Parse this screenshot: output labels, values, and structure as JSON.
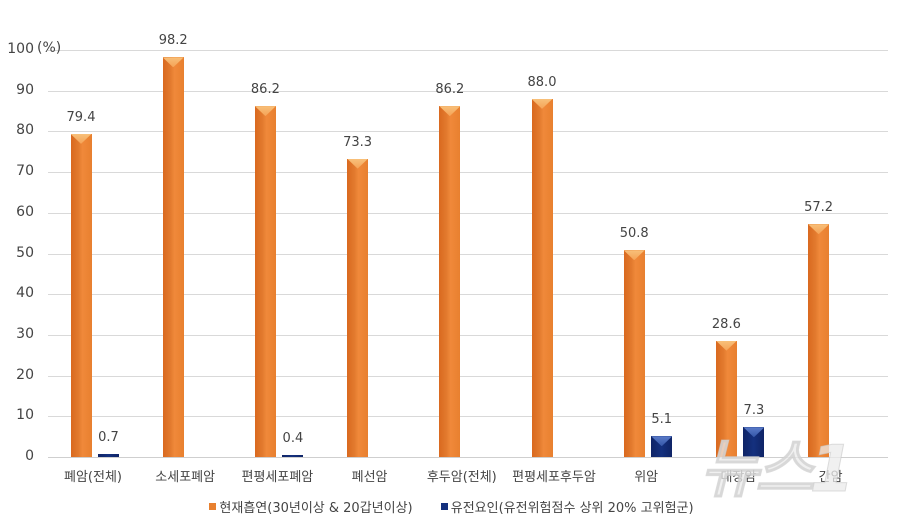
{
  "chart_data": {
    "type": "bar",
    "title": "",
    "xlabel": "",
    "ylabel": "(%)",
    "ylim": [
      0,
      100
    ],
    "yticks": [
      0,
      10,
      20,
      30,
      40,
      50,
      60,
      70,
      80,
      90,
      100
    ],
    "grid": true,
    "legend_position": "bottom",
    "categories": [
      "폐암(전체)",
      "소세포폐암",
      "편평세포폐암",
      "폐선암",
      "후두암(전체)",
      "편평세포후두암",
      "위암",
      "대장암",
      "간암"
    ],
    "series": [
      {
        "name": "현재흡연(30년이상  & 20갑년이상)",
        "color": "#E8802F",
        "values": [
          79.4,
          98.2,
          86.2,
          73.3,
          86.2,
          88.0,
          50.8,
          28.6,
          57.2
        ],
        "labels": [
          "79.4",
          "98.2",
          "86.2",
          "73.3",
          "86.2",
          "88.0",
          "50.8",
          "28.6",
          "57.2"
        ]
      },
      {
        "name": "유전요인(유전위험점수  상위 20% 고위험군)",
        "color": "#14307E",
        "values": [
          0.7,
          null,
          0.4,
          null,
          null,
          null,
          5.1,
          7.3,
          null
        ],
        "labels": [
          "0.7",
          "",
          "0.4",
          "",
          "",
          "",
          "5.1",
          "7.3",
          ""
        ]
      }
    ]
  },
  "axis": {
    "unit_label": "(%)"
  },
  "watermark": {
    "text": "뉴스1"
  }
}
